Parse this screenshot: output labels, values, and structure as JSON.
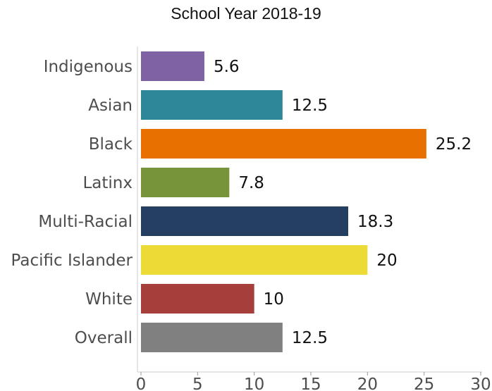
{
  "chart_data": {
    "type": "bar",
    "orientation": "horizontal",
    "subtitle": "School Year 2018-19",
    "categories": [
      "Indigenous",
      "Asian",
      "Black",
      "Latinx",
      "Multi-Racial",
      "Pacific Islander",
      "White",
      "Overall"
    ],
    "values": [
      5.6,
      12.5,
      25.2,
      7.8,
      18.3,
      20,
      10,
      12.5
    ],
    "value_labels": [
      "5.6",
      "12.5",
      "25.2",
      "7.8",
      "18.3",
      "20",
      "10",
      "12.5"
    ],
    "colors": [
      "#7f62a4",
      "#2e8699",
      "#e87000",
      "#77943b",
      "#243f62",
      "#ecdb36",
      "#a63e3b",
      "#808080"
    ],
    "xlim": [
      0,
      30
    ],
    "xticks": [
      0,
      5,
      10,
      15,
      20,
      25,
      30
    ],
    "xlabel": "",
    "ylabel": "",
    "grid": false
  }
}
